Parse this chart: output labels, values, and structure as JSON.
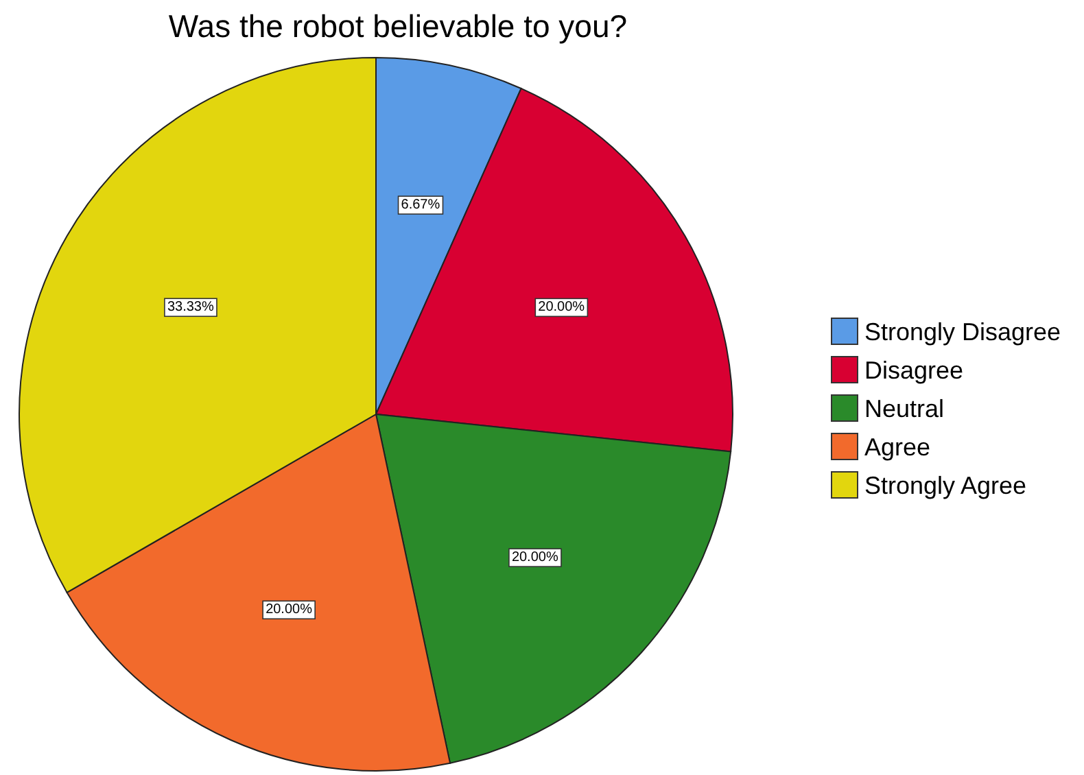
{
  "chart_data": {
    "type": "pie",
    "title": "Was the robot believable to you?",
    "categories": [
      "Strongly Disagree",
      "Disagree",
      "Neutral",
      "Agree",
      "Strongly Agree"
    ],
    "values": [
      6.67,
      20,
      20,
      20,
      33.33
    ],
    "colors": [
      "#5a9be6",
      "#d80032",
      "#2a8a2a",
      "#f26a2c",
      "#e2d60e"
    ],
    "value_labels": [
      "6.67%",
      "20.00%",
      "20.00%",
      "20.00%",
      "33.33%"
    ],
    "legend": "right"
  }
}
